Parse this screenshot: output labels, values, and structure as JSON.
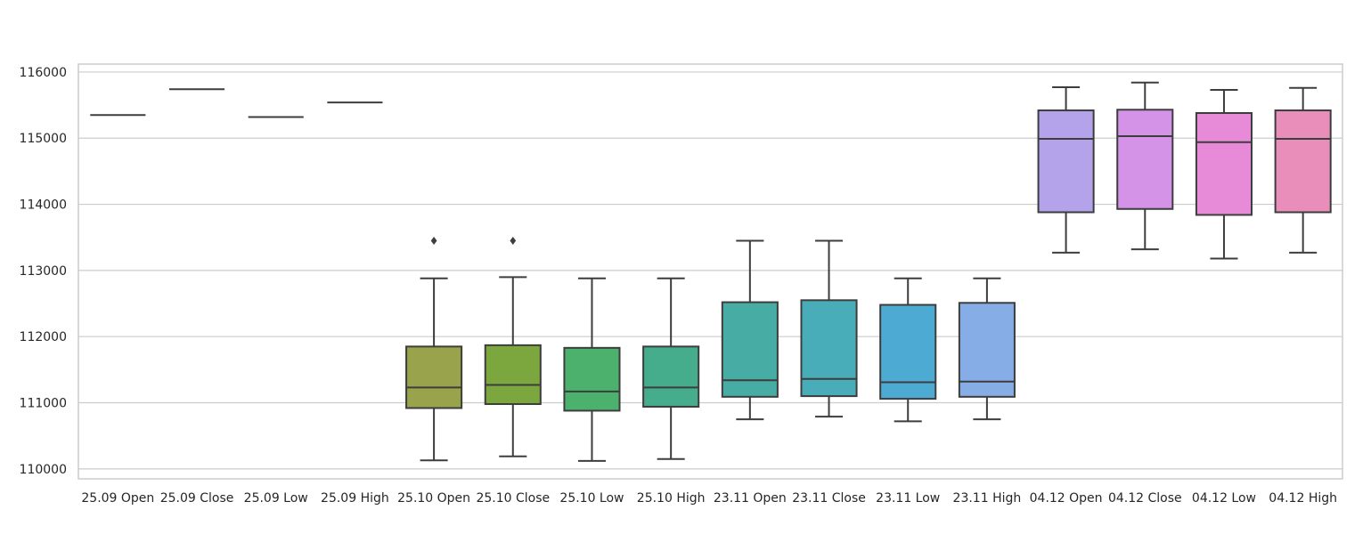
{
  "chart_data": {
    "type": "box",
    "title": "",
    "xlabel": "",
    "ylabel": "",
    "ylim": [
      109850,
      116120
    ],
    "yticks": [
      110000,
      111000,
      112000,
      113000,
      114000,
      115000,
      116000
    ],
    "grid": "horizontal",
    "categories": [
      "25.09 Open",
      "25.09 Close",
      "25.09 Low",
      "25.09 High",
      "25.10 Open",
      "25.10 Close",
      "25.10 Low",
      "25.10 High",
      "23.11 Open",
      "23.11 Close",
      "23.11 Low",
      "23.11 High",
      "04.12 Open",
      "04.12 Close",
      "04.12 Low",
      "04.12 High"
    ],
    "series": [
      {
        "whislo": 115350,
        "q1": 115350,
        "med": 115350,
        "q3": 115350,
        "whishi": 115350,
        "fliers": [],
        "color": "#c9828e"
      },
      {
        "whislo": 115740,
        "q1": 115740,
        "med": 115740,
        "q3": 115740,
        "whishi": 115740,
        "fliers": [],
        "color": "#c98a5e"
      },
      {
        "whislo": 115320,
        "q1": 115320,
        "med": 115320,
        "q3": 115320,
        "whishi": 115320,
        "fliers": [],
        "color": "#b9935a"
      },
      {
        "whislo": 115540,
        "q1": 115540,
        "med": 115540,
        "q3": 115540,
        "whishi": 115540,
        "fliers": [],
        "color": "#a89b55"
      },
      {
        "whislo": 110130,
        "q1": 110920,
        "med": 111230,
        "q3": 111850,
        "whishi": 112880,
        "fliers": [
          113450
        ],
        "color": "#98a34b"
      },
      {
        "whislo": 110190,
        "q1": 110980,
        "med": 111270,
        "q3": 111870,
        "whishi": 112900,
        "fliers": [
          113450
        ],
        "color": "#7ba73e"
      },
      {
        "whislo": 110120,
        "q1": 110880,
        "med": 111170,
        "q3": 111830,
        "whishi": 112880,
        "fliers": [],
        "color": "#4bb16c"
      },
      {
        "whislo": 110150,
        "q1": 110940,
        "med": 111230,
        "q3": 111850,
        "whishi": 112880,
        "fliers": [],
        "color": "#45ac8c"
      },
      {
        "whislo": 110750,
        "q1": 111090,
        "med": 111340,
        "q3": 112520,
        "whishi": 113450,
        "fliers": [],
        "color": "#47aca3"
      },
      {
        "whislo": 110790,
        "q1": 111100,
        "med": 111360,
        "q3": 112550,
        "whishi": 113450,
        "fliers": [],
        "color": "#48adb9"
      },
      {
        "whislo": 110720,
        "q1": 111060,
        "med": 111310,
        "q3": 112480,
        "whishi": 112880,
        "fliers": [],
        "color": "#4daad3"
      },
      {
        "whislo": 110750,
        "q1": 111090,
        "med": 111320,
        "q3": 112510,
        "whishi": 112880,
        "fliers": [],
        "color": "#87ade6"
      },
      {
        "whislo": 113270,
        "q1": 113880,
        "med": 114990,
        "q3": 115420,
        "whishi": 115770,
        "fliers": [],
        "color": "#b4a3ea"
      },
      {
        "whislo": 113320,
        "q1": 113930,
        "med": 115030,
        "q3": 115430,
        "whishi": 115840,
        "fliers": [],
        "color": "#d493e7"
      },
      {
        "whislo": 113180,
        "q1": 113840,
        "med": 114940,
        "q3": 115380,
        "whishi": 115730,
        "fliers": [],
        "color": "#e78bd9"
      },
      {
        "whislo": 113270,
        "q1": 113880,
        "med": 114990,
        "q3": 115420,
        "whishi": 115760,
        "fliers": [],
        "color": "#e98eba"
      }
    ]
  }
}
